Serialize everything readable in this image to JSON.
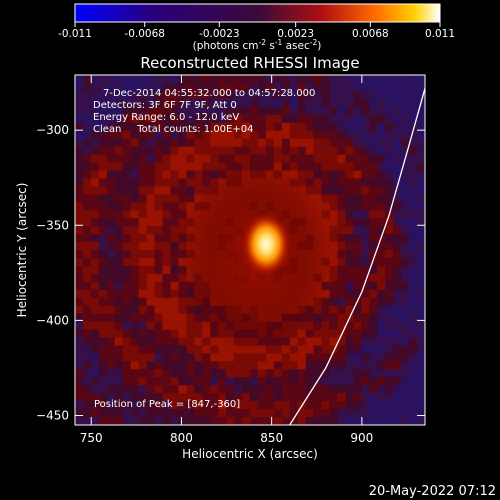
{
  "chart_data": {
    "type": "heatmap",
    "title": "Reconstructed RHESSI Image",
    "xlabel": "Heliocentric X (arcsec)",
    "ylabel": "Heliocentric Y (arcsec)",
    "xlim": [
      741,
      935
    ],
    "ylim": [
      -455,
      -271
    ],
    "x_ticks": [
      750,
      800,
      850,
      900
    ],
    "y_ticks": [
      -300,
      -350,
      -400,
      -450
    ],
    "colorbar": {
      "range": [
        -0.011,
        0.011
      ],
      "tick_values": [
        -0.011,
        -0.0068,
        -0.0023,
        0.0023,
        0.0068,
        0.011
      ],
      "tick_labels": [
        "-0.011",
        "-0.0068",
        "-0.0023",
        "0.0023",
        "0.0068",
        "0.011"
      ],
      "units_prefix": "(photons cm",
      "units_exp1": "-2",
      "units_mid1": " s",
      "units_exp2": "-1",
      "units_mid2": " asec",
      "units_exp3": "-2",
      "units_suffix": ")",
      "colormap": "gnuplot"
    },
    "info_lines": [
      "7-Dec-2014 04:55:32.000 to 04:57:28.000",
      "Detectors: 3F 6F 7F 9F, Att 0",
      "Energy Range: 6.0 - 12.0 keV",
      "Clean     Total counts: 1.00E+04"
    ],
    "peak_label": "Position of Peak = [847,-360]",
    "peak": {
      "x": 847,
      "y": -360
    },
    "limb_curve": [
      [
        860,
        -455
      ],
      [
        880,
        -425
      ],
      [
        900,
        -385
      ],
      [
        915,
        -345
      ],
      [
        927,
        -305
      ],
      [
        935,
        -278
      ]
    ]
  },
  "timestamp": "20-May-2022 07:12"
}
